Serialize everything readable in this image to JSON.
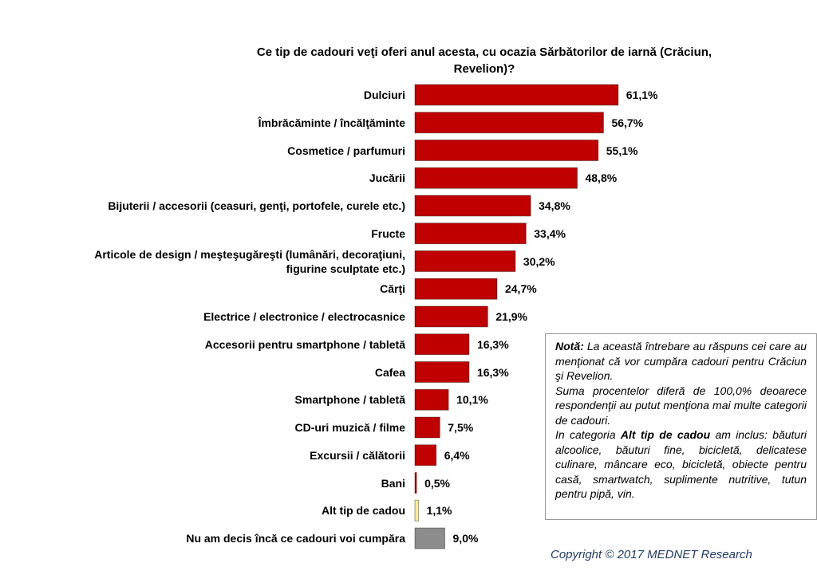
{
  "chart_data": {
    "type": "bar",
    "orientation": "horizontal",
    "title": "Ce tip de cadouri veţi oferi anul acesta, cu ocazia Sărbătorilor de iarnă (Crăciun, Revelion)?",
    "categories": [
      "Dulciuri",
      "Îmbrăcăminte / încălţăminte",
      "Cosmetice / parfumuri",
      "Jucării",
      "Bijuterii / accesorii (ceasuri, genţi, portofele, curele etc.)",
      "Fructe",
      "Articole de design / meşteşugăreşti (lumânări, decoraţiuni, figurine sculptate etc.)",
      "Cărţi",
      "Electrice / electronice / electrocasnice",
      "Accesorii pentru smartphone / tabletă",
      "Cafea",
      "Smartphone / tabletă",
      "CD-uri muzică / filme",
      "Excursii / călătorii",
      "Bani",
      "Alt tip de cadou",
      "Nu am decis încă ce cadouri voi cumpăra"
    ],
    "values": [
      61.1,
      56.7,
      55.1,
      48.8,
      34.8,
      33.4,
      30.2,
      24.7,
      21.9,
      16.3,
      16.3,
      10.1,
      7.5,
      6.4,
      0.5,
      1.1,
      9.0
    ],
    "value_labels": [
      "61,1%",
      "56,7%",
      "55,1%",
      "48,8%",
      "34,8%",
      "33,4%",
      "30,2%",
      "24,7%",
      "21,9%",
      "16,3%",
      "16,3%",
      "10,1%",
      "7,5%",
      "6,4%",
      "0,5%",
      "1,1%",
      "9,0%"
    ],
    "colors": [
      "#c00000",
      "#c00000",
      "#c00000",
      "#c00000",
      "#c00000",
      "#c00000",
      "#c00000",
      "#c00000",
      "#c00000",
      "#c00000",
      "#c00000",
      "#c00000",
      "#c00000",
      "#c00000",
      "#c00000",
      "#f5eb9a",
      "#8c8c8c"
    ]
  },
  "note": {
    "label": "Notă:",
    "text1": " La această întrebare au răspuns cei care au menţionat că vor cumpăra cadouri pentru Crăciun şi Revelion.",
    "text2": "Suma procentelor diferă de 100,0% deoarece respondenţii au putut menţiona mai multe categorii de cadouri.",
    "text3a": "In categoria ",
    "text3b": "Alt tip de cadou",
    "text3c": "  am inclus: băuturi alcoolice, băuturi fine, bicicletă, delicatese culinare, mâncare eco, bicicletă, obiecte pentru casă, smartwatch, suplimente nutritive, tutun pentru pipă, vin."
  },
  "copyright": "Copyright  ©  2017 MEDNET Research"
}
